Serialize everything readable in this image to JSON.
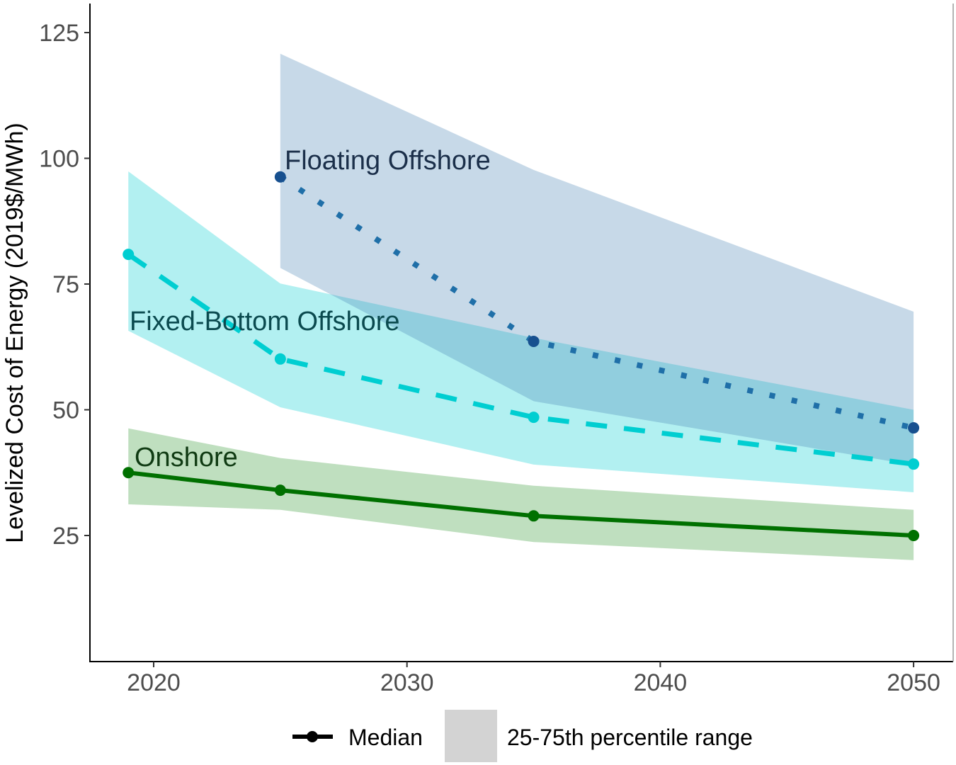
{
  "chart_data": {
    "type": "line",
    "title": "",
    "xlabel": "",
    "ylabel": "Levelized Cost of Energy (2019$/MWh)",
    "xlim": [
      2017.5,
      2051.5
    ],
    "ylim": [
      0,
      130.7
    ],
    "x_ticks": [
      2020,
      2030,
      2040,
      2050
    ],
    "x_tick_labels": [
      "2020",
      "2030",
      "2040",
      "2050"
    ],
    "y_ticks": [
      25,
      50,
      75,
      100,
      125
    ],
    "y_tick_labels": [
      "25",
      "50",
      "75",
      "100",
      "125"
    ],
    "grid": false,
    "series": [
      {
        "name": "Floating Offshore",
        "line_style": "dotted",
        "line_color": "#1f6fa8",
        "point_color": "#17508f",
        "band_color": "#4682b4",
        "x": [
          2025,
          2035,
          2050
        ],
        "median": [
          96.3,
          63.6,
          46.4
        ],
        "p25": [
          78.2,
          51.7,
          39.0
        ],
        "p75": [
          120.8,
          97.7,
          69.5
        ],
        "label_color": "#1b2f4a"
      },
      {
        "name": "Fixed-Bottom Offshore",
        "line_style": "dashed",
        "line_color": "#00ced1",
        "point_color": "#00ced1",
        "band_color": "#00ced1",
        "x": [
          2019,
          2025,
          2035,
          2050
        ],
        "median": [
          80.9,
          60.1,
          48.5,
          39.2
        ],
        "p25": [
          65.7,
          50.5,
          39.1,
          33.6
        ],
        "p75": [
          97.4,
          75.1,
          64.3,
          50.0
        ],
        "label_color": "#0b4a4f"
      },
      {
        "name": "Onshore",
        "line_style": "solid",
        "line_color": "#007000",
        "point_color": "#007000",
        "band_color": "#008000",
        "x": [
          2019,
          2025,
          2035,
          2050
        ],
        "median": [
          37.5,
          34.0,
          28.9,
          25.0
        ],
        "p25": [
          31.2,
          30.1,
          23.7,
          20.1
        ],
        "p75": [
          46.3,
          40.4,
          34.9,
          30.1
        ],
        "label_color": "#0f3a12"
      }
    ],
    "legend": {
      "position": "bottom",
      "median_label": "Median",
      "range_label": "25-75th percentile range",
      "range_color": "#d3d3d3"
    }
  }
}
